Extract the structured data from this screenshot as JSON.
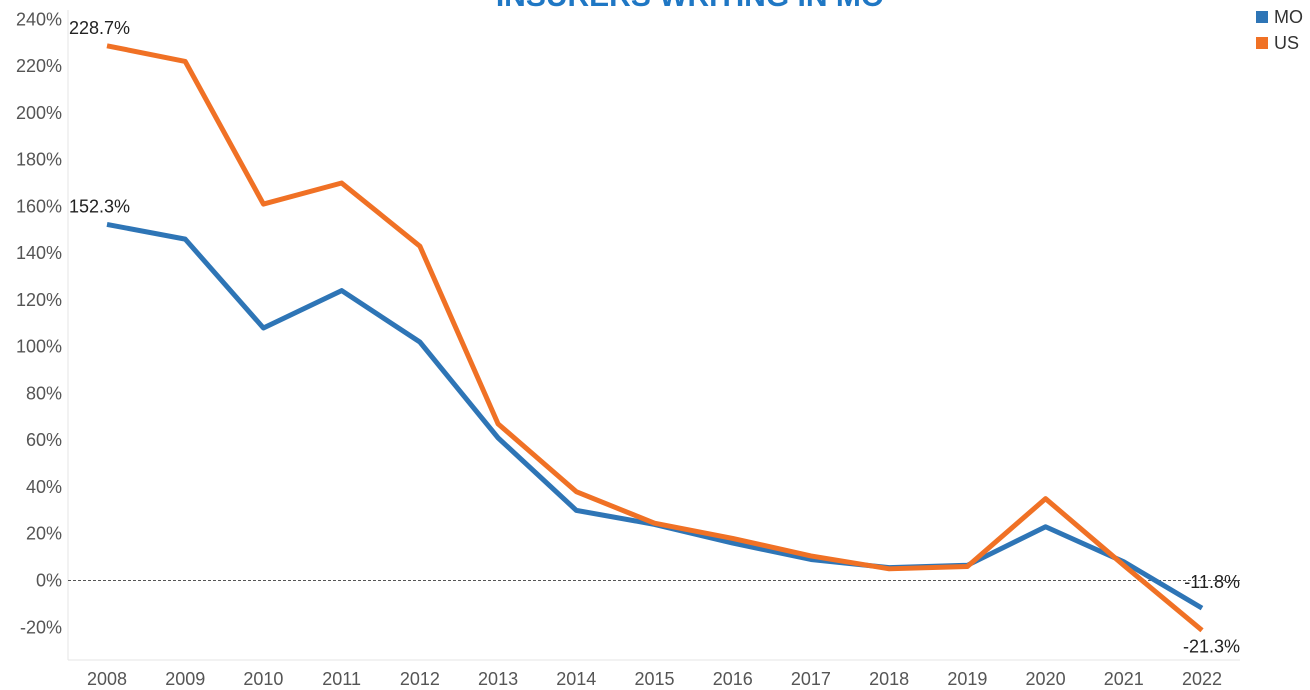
{
  "chart_data": {
    "type": "line",
    "title": "INSURERS WRITING IN MO",
    "categories": [
      "2008",
      "2009",
      "2010",
      "2011",
      "2012",
      "2013",
      "2014",
      "2015",
      "2016",
      "2017",
      "2018",
      "2019",
      "2020",
      "2021",
      "2022"
    ],
    "series": [
      {
        "name": "MO",
        "color": "#2e75b6",
        "values": [
          152.3,
          146,
          108,
          124,
          102,
          61,
          30,
          24,
          16,
          9,
          5.5,
          6.5,
          23,
          8,
          -11.8
        ],
        "value_labels": [
          "152.3%",
          null,
          null,
          null,
          null,
          null,
          null,
          null,
          null,
          null,
          null,
          null,
          null,
          null,
          "-11.8%"
        ]
      },
      {
        "name": "US",
        "color": "#f07125",
        "values": [
          228.7,
          222,
          161,
          170,
          143,
          67,
          38,
          24.5,
          18,
          10.5,
          5,
          6,
          35,
          6.5,
          -21.3
        ],
        "value_labels": [
          "228.7%",
          null,
          null,
          null,
          null,
          null,
          null,
          null,
          null,
          null,
          null,
          null,
          null,
          null,
          "-21.3%"
        ]
      }
    ],
    "ylim": [
      -34,
      244
    ],
    "yticks": [
      {
        "value": -20,
        "label": "-20%"
      },
      {
        "value": 0,
        "label": "0%"
      },
      {
        "value": 20,
        "label": "20%"
      },
      {
        "value": 40,
        "label": "40%"
      },
      {
        "value": 60,
        "label": "60%"
      },
      {
        "value": 80,
        "label": "80%"
      },
      {
        "value": 100,
        "label": "100%"
      },
      {
        "value": 120,
        "label": "120%"
      },
      {
        "value": 140,
        "label": "140%"
      },
      {
        "value": 160,
        "label": "160%"
      },
      {
        "value": 180,
        "label": "180%"
      },
      {
        "value": 200,
        "label": "200%"
      },
      {
        "value": 220,
        "label": "220%"
      },
      {
        "value": 240,
        "label": "240%"
      }
    ],
    "legend": "top-right"
  }
}
